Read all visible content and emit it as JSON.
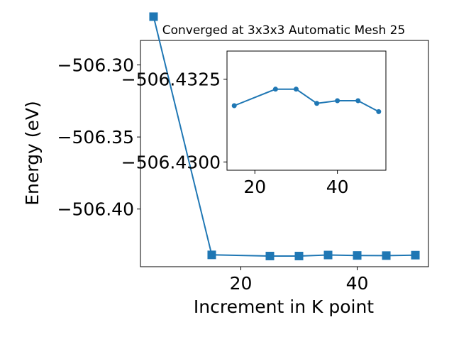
{
  "chart_data": [
    {
      "type": "line",
      "title": "Converged at 3x3x3 Automatic Mesh 25",
      "xlabel": "Increment in K point",
      "ylabel": "Energy (eV)",
      "xlim": [
        2.75,
        52.25
      ],
      "ylim": [
        -506.44,
        -506.283
      ],
      "x_ticks": [
        20,
        40
      ],
      "y_ticks": [
        -506.3,
        -506.35,
        -506.4
      ],
      "x_tick_labels": [
        "20",
        "40"
      ],
      "y_tick_labels": [
        "−506.30",
        "−506.35",
        "−506.40"
      ],
      "grid": false,
      "marker": "square",
      "color": "#1f77b4",
      "series": [
        {
          "x": [
            5,
            15,
            25,
            30,
            35,
            40,
            45,
            50
          ],
          "y": [
            -506.2665,
            -506.4318,
            -506.4326,
            -506.4326,
            -506.4319,
            -506.4322,
            -506.4323,
            -506.432
          ]
        }
      ]
    },
    {
      "type": "line",
      "inset": true,
      "xlim": [
        13.25,
        51.75
      ],
      "ylim": [
        -506.42975,
        -506.43335
      ],
      "x_ticks": [
        20,
        40
      ],
      "y_ticks": [
        -506.4325,
        -506.43
      ],
      "x_tick_labels": [
        "20",
        "40"
      ],
      "y_tick_labels": [
        "−506.4325",
        "−506.4300"
      ],
      "grid": false,
      "marker": "circle",
      "color": "#1f77b4",
      "series": [
        {
          "x": [
            15,
            25,
            30,
            35,
            40,
            45,
            50
          ],
          "y": [
            -506.4317,
            -506.4322,
            -506.4322,
            -506.43177,
            -506.43185,
            -506.43185,
            -506.43152
          ]
        }
      ]
    }
  ]
}
